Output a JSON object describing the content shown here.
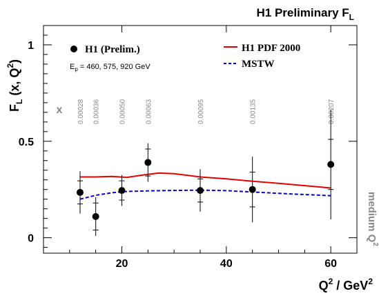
{
  "chart_data": {
    "type": "scatter",
    "header": "H1 Preliminary F",
    "header_sub": "L",
    "ylabel_main": "F",
    "ylabel_sub": "L",
    "ylabel_rest": " (x, Q",
    "ylabel_sup": "2",
    "ylabel_close": ")",
    "xlabel_q": "Q",
    "xlabel_sup1": "2",
    "xlabel_mid": " / GeV",
    "xlabel_sup2": "2",
    "xlim": [
      5,
      65
    ],
    "ylim": [
      -0.08,
      1.1
    ],
    "x_ticks": [
      20,
      40,
      60
    ],
    "x_tick_labels": [
      "20",
      "40",
      "60"
    ],
    "y_ticks": [
      0,
      0.5,
      1
    ],
    "y_tick_labels": [
      "0",
      "0.5",
      "1"
    ],
    "x_symbol": "x",
    "x_bin_labels": [
      "0.00028",
      "0.00036",
      "0.00050",
      "0.00063",
      "0.00095",
      "0.00135",
      "0.00207"
    ],
    "x_bin_positions": [
      12,
      15,
      20,
      25,
      35,
      45,
      60
    ],
    "energy_label": "E",
    "energy_sub": "p",
    "energy_values": " = 460, 575, 920 GeV",
    "side_label": "medium Q",
    "side_sup": "2",
    "legend": [
      {
        "label": "H1 (Prelim.)",
        "style": "marker"
      },
      {
        "label": "H1 PDF 2000",
        "style": "line",
        "color": "#e00000"
      },
      {
        "label": "MSTW",
        "style": "dashed",
        "color": "#0000dd"
      }
    ],
    "series": [
      {
        "name": "H1 (Prelim.)",
        "points": [
          {
            "x": 12,
            "y": 0.235,
            "stat": 0.06,
            "tot": 0.11
          },
          {
            "x": 15,
            "y": 0.11,
            "stat": 0.07,
            "tot": 0.1
          },
          {
            "x": 20,
            "y": 0.245,
            "stat": 0.05,
            "tot": 0.08
          },
          {
            "x": 25,
            "y": 0.39,
            "stat": 0.07,
            "tot": 0.1
          },
          {
            "x": 35,
            "y": 0.245,
            "stat": 0.06,
            "tot": 0.11
          },
          {
            "x": 45,
            "y": 0.25,
            "stat": 0.09,
            "tot": 0.17
          },
          {
            "x": 60,
            "y": 0.38,
            "stat": 0.13,
            "tot": 0.285
          }
        ]
      },
      {
        "name": "H1 PDF 2000",
        "color": "#e00000",
        "line": [
          [
            12,
            0.315
          ],
          [
            15,
            0.315
          ],
          [
            18,
            0.318
          ],
          [
            21,
            0.313
          ],
          [
            24,
            0.325
          ],
          [
            27,
            0.335
          ],
          [
            30,
            0.332
          ],
          [
            35,
            0.315
          ],
          [
            40,
            0.305
          ],
          [
            45,
            0.293
          ],
          [
            50,
            0.282
          ],
          [
            55,
            0.27
          ],
          [
            60,
            0.258
          ]
        ]
      },
      {
        "name": "MSTW",
        "color": "#0000dd",
        "line": [
          [
            12,
            0.2
          ],
          [
            15,
            0.22
          ],
          [
            18,
            0.233
          ],
          [
            21,
            0.24
          ],
          [
            25,
            0.243
          ],
          [
            30,
            0.245
          ],
          [
            35,
            0.247
          ],
          [
            40,
            0.244
          ],
          [
            45,
            0.237
          ],
          [
            50,
            0.23
          ],
          [
            55,
            0.224
          ],
          [
            60,
            0.218
          ]
        ]
      }
    ]
  }
}
